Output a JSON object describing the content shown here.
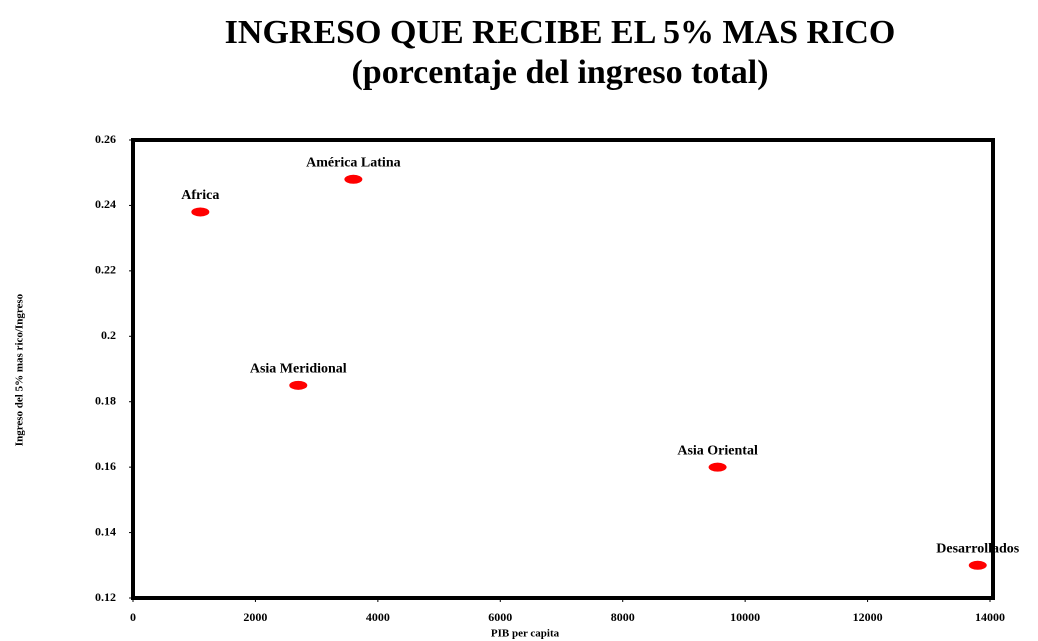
{
  "chart_data": {
    "type": "scatter",
    "title": "INGRESO QUE RECIBE EL 5% MAS RICO",
    "subtitle": "(porcentaje del ingreso total)",
    "x_label": "PIB per capita",
    "y_label": "Ingreso del 5% mas rico/Ingreso",
    "point_labels": [
      "Africa",
      "América Latina",
      "Asia Meridional",
      "Asia Oriental",
      "Desarrollados"
    ],
    "x": [
      1100,
      3600,
      2700,
      9550,
      13800
    ],
    "values": [
      0.238,
      0.248,
      0.185,
      0.16,
      0.13
    ],
    "color": "#ff0000",
    "xlim": [
      0,
      14000
    ],
    "xticks": [
      0,
      2000,
      4000,
      6000,
      8000,
      10000,
      12000,
      14000
    ],
    "ylim": [
      0.12,
      0.26
    ],
    "yticks": [
      0.12,
      0.14,
      0.16,
      0.18,
      0.2,
      0.22,
      0.24,
      0.26
    ]
  }
}
